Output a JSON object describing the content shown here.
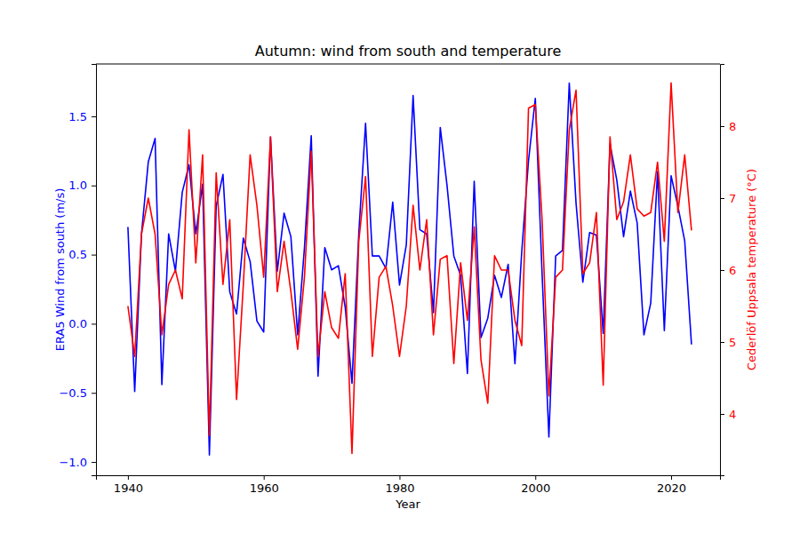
{
  "chart_data": {
    "type": "line",
    "title": "Autumn: wind from south and temperature",
    "xlabel": "Year",
    "ylabel": "ERA5 Wind from south (m/s)",
    "y2label": "Cederlöf Uppsala temperature (°C)",
    "x": [
      1940,
      1941,
      1942,
      1943,
      1944,
      1945,
      1946,
      1947,
      1948,
      1949,
      1950,
      1951,
      1952,
      1953,
      1954,
      1955,
      1956,
      1957,
      1958,
      1959,
      1960,
      1961,
      1962,
      1963,
      1964,
      1965,
      1966,
      1967,
      1968,
      1969,
      1970,
      1971,
      1972,
      1973,
      1974,
      1975,
      1976,
      1977,
      1978,
      1979,
      1980,
      1981,
      1982,
      1983,
      1984,
      1985,
      1986,
      1987,
      1988,
      1989,
      1990,
      1991,
      1992,
      1993,
      1994,
      1995,
      1996,
      1997,
      1998,
      1999,
      2000,
      2001,
      2002,
      2003,
      2004,
      2005,
      2006,
      2007,
      2008,
      2009,
      2010,
      2011,
      2012,
      2013,
      2014,
      2015,
      2016,
      2017,
      2018,
      2019,
      2020,
      2021,
      2022,
      2023
    ],
    "xlim": [
      1935.3,
      2027.2
    ],
    "xticks": [
      1940,
      1960,
      1980,
      2000,
      2020
    ],
    "ylim": [
      -1.096,
      1.879
    ],
    "yticks": [
      {
        "value": -1.0,
        "label": "−1.0"
      },
      {
        "value": -0.5,
        "label": "−0.5"
      },
      {
        "value": 0.0,
        "label": "0.0"
      },
      {
        "value": 0.5,
        "label": "0.5"
      },
      {
        "value": 1.0,
        "label": "1.0"
      },
      {
        "value": 1.5,
        "label": "1.5"
      }
    ],
    "y2lim": [
      3.148,
      8.864
    ],
    "y2ticks": [
      4,
      5,
      6,
      7,
      8
    ],
    "grid": false,
    "series": [
      {
        "color": "blue",
        "values": [
          0.7,
          -0.49,
          0.65,
          1.17,
          1.34,
          -0.44,
          0.65,
          0.38,
          0.95,
          1.15,
          0.65,
          1.01,
          -0.95,
          0.85,
          1.08,
          0.23,
          0.07,
          0.62,
          0.45,
          0.02,
          -0.06,
          1.35,
          0.38,
          0.8,
          0.63,
          -0.08,
          0.55,
          1.36,
          -0.38,
          0.55,
          0.39,
          0.42,
          0.12,
          -0.43,
          0.65,
          1.45,
          0.49,
          0.49,
          0.4,
          0.88,
          0.28,
          0.57,
          1.65,
          0.68,
          0.65,
          0.08,
          1.42,
          1.0,
          0.49,
          0.35,
          -0.36,
          1.03,
          -0.1,
          0.04,
          0.35,
          0.19,
          0.43,
          -0.29,
          0.52,
          1.18,
          1.63,
          0.36,
          -0.82,
          0.49,
          0.53,
          1.74,
          0.87,
          0.3,
          0.66,
          0.64,
          -0.07,
          1.3,
          1.04,
          0.63,
          0.96,
          0.73,
          -0.08,
          0.15,
          1.1,
          -0.05,
          1.07,
          0.85,
          0.6,
          -0.15
        ]
      },
      {
        "color": "red",
        "axis": "y2",
        "values": [
          5.5,
          4.8,
          6.5,
          7.0,
          6.5,
          5.1,
          5.8,
          6.0,
          5.6,
          7.95,
          6.1,
          7.6,
          3.7,
          7.35,
          5.8,
          6.7,
          4.2,
          5.8,
          7.6,
          6.9,
          5.9,
          7.85,
          5.7,
          6.4,
          5.7,
          4.9,
          5.9,
          7.65,
          4.8,
          5.7,
          5.2,
          5.05,
          5.95,
          3.45,
          6.4,
          7.3,
          4.8,
          5.9,
          6.05,
          5.5,
          4.8,
          5.5,
          6.9,
          6.0,
          6.7,
          5.1,
          6.15,
          6.2,
          4.7,
          6.1,
          5.3,
          6.6,
          4.75,
          4.15,
          6.2,
          6.0,
          6.0,
          5.3,
          4.95,
          8.25,
          8.3,
          6.7,
          4.25,
          5.9,
          6.0,
          7.95,
          8.5,
          5.95,
          6.1,
          6.8,
          4.4,
          7.85,
          6.7,
          6.95,
          7.6,
          6.85,
          6.75,
          6.8,
          7.5,
          6.4,
          8.6,
          6.8,
          7.6,
          6.55
        ]
      }
    ]
  }
}
